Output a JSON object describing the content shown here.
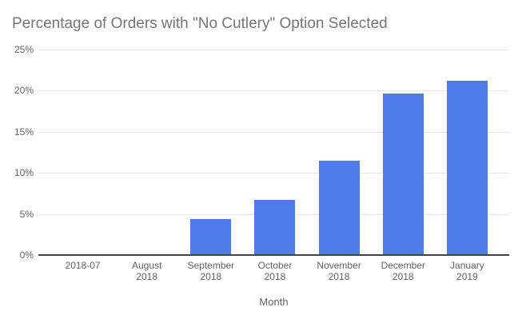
{
  "chart_data": {
    "type": "bar",
    "title": "Percentage of Orders with \"No Cutlery\" Option Selected",
    "xlabel": "Month",
    "ylabel": "",
    "ylim": [
      0,
      25
    ],
    "grid": true,
    "legend": "none",
    "unit": "%",
    "yticks": [
      {
        "label": "0%",
        "value": 0
      },
      {
        "label": "5%",
        "value": 5
      },
      {
        "label": "10%",
        "value": 10
      },
      {
        "label": "15%",
        "value": 15
      },
      {
        "label": "20%",
        "value": 20
      },
      {
        "label": "25%",
        "value": 25
      }
    ],
    "categories": [
      "2018-07",
      "August 2018",
      "September 2018",
      "October 2018",
      "November 2018",
      "December 2018",
      "January 2019"
    ],
    "category_lines": [
      [
        "2018-07"
      ],
      [
        "August",
        "2018"
      ],
      [
        "September",
        "2018"
      ],
      [
        "October",
        "2018"
      ],
      [
        "November",
        "2018"
      ],
      [
        "December",
        "2018"
      ],
      [
        "January",
        "2019"
      ]
    ],
    "values": [
      0,
      0,
      4.3,
      6.6,
      11.4,
      19.6,
      21.1
    ],
    "colors": {
      "bar": "#4d7cea",
      "gridline": "#e6e6e6",
      "axis_line": "#444444",
      "title": "#757575",
      "tick_label": "#616161",
      "axis_title": "#5f6368",
      "background": "#ffffff"
    }
  }
}
